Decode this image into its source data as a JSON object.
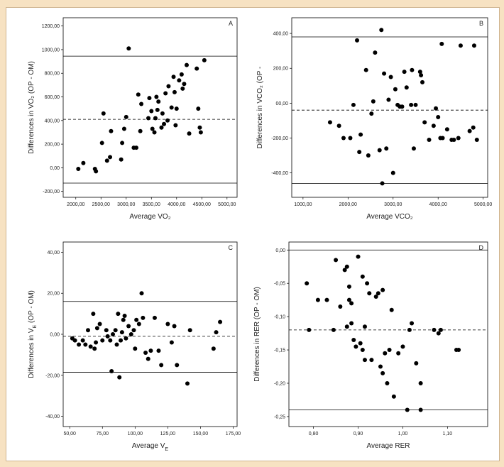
{
  "colors": {
    "background": "#f7e2c2",
    "frame": "#ffffff",
    "points": "#000000"
  },
  "chart_data": [
    {
      "type": "scatter",
      "panel": "A",
      "ylabel": "Differences in VO₂ (OP - OM)",
      "xlabel": "Average VO₂",
      "xlim": [
        1750,
        5200
      ],
      "ylim": [
        -250,
        1270
      ],
      "xticks": [
        {
          "v": 2000,
          "label": "2000,00"
        },
        {
          "v": 2500,
          "label": "2500,00"
        },
        {
          "v": 3000,
          "label": "3000,00"
        },
        {
          "v": 3500,
          "label": "3500,00"
        },
        {
          "v": 4000,
          "label": "4000,00"
        },
        {
          "v": 4500,
          "label": "4500,00"
        },
        {
          "v": 5000,
          "label": "5000,00"
        }
      ],
      "yticks": [
        {
          "v": -200,
          "label": "-200,00"
        },
        {
          "v": 0,
          "label": "0,00"
        },
        {
          "v": 200,
          "label": "200,00"
        },
        {
          "v": 400,
          "label": "400,00"
        },
        {
          "v": 600,
          "label": "600,00"
        },
        {
          "v": 800,
          "label": "800,00"
        },
        {
          "v": 1000,
          "label": "1000,00"
        },
        {
          "v": 1200,
          "label": "1200,00"
        }
      ],
      "upper_limit": 945,
      "mean": 410,
      "lower_limit": -130,
      "points": [
        [
          2050,
          -10
        ],
        [
          2150,
          40
        ],
        [
          2380,
          -10
        ],
        [
          2400,
          -30
        ],
        [
          2520,
          210
        ],
        [
          2550,
          460
        ],
        [
          2620,
          60
        ],
        [
          2680,
          90
        ],
        [
          2700,
          310
        ],
        [
          2900,
          70
        ],
        [
          2920,
          210
        ],
        [
          2960,
          330
        ],
        [
          3000,
          430
        ],
        [
          3050,
          1010
        ],
        [
          3150,
          170
        ],
        [
          3200,
          170
        ],
        [
          3240,
          620
        ],
        [
          3280,
          310
        ],
        [
          3300,
          540
        ],
        [
          3440,
          420
        ],
        [
          3460,
          590
        ],
        [
          3500,
          480
        ],
        [
          3520,
          330
        ],
        [
          3560,
          300
        ],
        [
          3580,
          420
        ],
        [
          3600,
          600
        ],
        [
          3620,
          490
        ],
        [
          3640,
          560
        ],
        [
          3700,
          340
        ],
        [
          3720,
          460
        ],
        [
          3750,
          370
        ],
        [
          3780,
          630
        ],
        [
          3820,
          400
        ],
        [
          3840,
          690
        ],
        [
          3900,
          510
        ],
        [
          3940,
          770
        ],
        [
          3960,
          640
        ],
        [
          3980,
          360
        ],
        [
          4000,
          500
        ],
        [
          4050,
          740
        ],
        [
          4100,
          790
        ],
        [
          4120,
          670
        ],
        [
          4150,
          710
        ],
        [
          4200,
          870
        ],
        [
          4250,
          290
        ],
        [
          4400,
          840
        ],
        [
          4430,
          500
        ],
        [
          4460,
          340
        ],
        [
          4480,
          300
        ],
        [
          4550,
          910
        ]
      ]
    },
    {
      "type": "scatter",
      "panel": "B",
      "ylabel": "Differences in VCO₂ (OP -",
      "xlabel": "Average VCO₂",
      "xlim": [
        750,
        5100
      ],
      "ylim": [
        -540,
        490
      ],
      "xticks": [
        {
          "v": 1000,
          "label": "1000,00"
        },
        {
          "v": 2000,
          "label": "2000,00"
        },
        {
          "v": 3000,
          "label": "3000,00"
        },
        {
          "v": 4000,
          "label": "4000,00"
        },
        {
          "v": 5000,
          "label": "5000,00"
        }
      ],
      "yticks": [
        {
          "v": -400,
          "label": "-400,00"
        },
        {
          "v": -200,
          "label": "-200,00"
        },
        {
          "v": 0,
          "label": "00,00"
        },
        {
          "v": 200,
          "label": "200,00"
        },
        {
          "v": 400,
          "label": "400,00"
        }
      ],
      "upper_limit": 380,
      "mean": -40,
      "lower_limit": -460,
      "points": [
        [
          1600,
          -110
        ],
        [
          1800,
          -130
        ],
        [
          1900,
          -200
        ],
        [
          2050,
          -200
        ],
        [
          2120,
          -10
        ],
        [
          2200,
          360
        ],
        [
          2250,
          -280
        ],
        [
          2280,
          -180
        ],
        [
          2400,
          190
        ],
        [
          2450,
          -300
        ],
        [
          2520,
          -60
        ],
        [
          2560,
          10
        ],
        [
          2600,
          290
        ],
        [
          2700,
          -270
        ],
        [
          2740,
          420
        ],
        [
          2760,
          -460
        ],
        [
          2800,
          170
        ],
        [
          2850,
          -260
        ],
        [
          2900,
          20
        ],
        [
          2950,
          150
        ],
        [
          3000,
          -400
        ],
        [
          3050,
          80
        ],
        [
          3100,
          -10
        ],
        [
          3150,
          -20
        ],
        [
          3200,
          -20
        ],
        [
          3250,
          180
        ],
        [
          3300,
          90
        ],
        [
          3400,
          -10
        ],
        [
          3420,
          190
        ],
        [
          3460,
          -260
        ],
        [
          3500,
          -10
        ],
        [
          3600,
          180
        ],
        [
          3620,
          160
        ],
        [
          3650,
          120
        ],
        [
          3700,
          -110
        ],
        [
          3800,
          -210
        ],
        [
          3900,
          -130
        ],
        [
          3950,
          -30
        ],
        [
          4000,
          -80
        ],
        [
          4050,
          -200
        ],
        [
          4080,
          340
        ],
        [
          4100,
          -200
        ],
        [
          4200,
          -150
        ],
        [
          4300,
          -210
        ],
        [
          4350,
          -210
        ],
        [
          4450,
          -200
        ],
        [
          4500,
          330
        ],
        [
          4700,
          -160
        ],
        [
          4780,
          -140
        ],
        [
          4800,
          330
        ],
        [
          4860,
          -210
        ]
      ]
    },
    {
      "type": "scatter",
      "panel": "C",
      "ylabel": "Differences in V_E (OP - OM)",
      "xlabel": "Average V_E",
      "xlim": [
        45,
        178
      ],
      "ylim": [
        -45,
        45
      ],
      "xticks": [
        {
          "v": 50,
          "label": "50,00"
        },
        {
          "v": 75,
          "label": "75,00"
        },
        {
          "v": 100,
          "label": "100,00"
        },
        {
          "v": 125,
          "label": "125,00"
        },
        {
          "v": 150,
          "label": "150,00"
        },
        {
          "v": 175,
          "label": "175,00"
        }
      ],
      "yticks": [
        {
          "v": -40,
          "label": "-40,00"
        },
        {
          "v": -20,
          "label": "-20,00"
        },
        {
          "v": 0,
          "label": "0,00"
        },
        {
          "v": 20,
          "label": "20,00"
        },
        {
          "v": 40,
          "label": "40,00"
        }
      ],
      "upper_limit": 16,
      "mean": -1,
      "lower_limit": -18.5,
      "points": [
        [
          52,
          -2
        ],
        [
          54,
          -3
        ],
        [
          57,
          -5
        ],
        [
          60,
          -3
        ],
        [
          62,
          -5
        ],
        [
          64,
          2
        ],
        [
          66,
          -6
        ],
        [
          68,
          10
        ],
        [
          69,
          -7
        ],
        [
          70,
          -4
        ],
        [
          71,
          3
        ],
        [
          73,
          5
        ],
        [
          75,
          -3
        ],
        [
          78,
          2
        ],
        [
          79,
          -1
        ],
        [
          81,
          -3
        ],
        [
          82,
          -18
        ],
        [
          83,
          0
        ],
        [
          85,
          2
        ],
        [
          86,
          -5
        ],
        [
          87,
          10
        ],
        [
          88,
          -21
        ],
        [
          89,
          -3
        ],
        [
          90,
          1
        ],
        [
          91,
          7
        ],
        [
          92,
          9
        ],
        [
          93,
          -2
        ],
        [
          95,
          4
        ],
        [
          97,
          0
        ],
        [
          99,
          2
        ],
        [
          100,
          -7
        ],
        [
          101,
          7
        ],
        [
          103,
          5
        ],
        [
          105,
          20
        ],
        [
          106,
          8
        ],
        [
          108,
          -9
        ],
        [
          110,
          -12
        ],
        [
          112,
          -8
        ],
        [
          115,
          8
        ],
        [
          118,
          -8
        ],
        [
          120,
          -15
        ],
        [
          125,
          5
        ],
        [
          128,
          -4
        ],
        [
          130,
          4
        ],
        [
          132,
          -15
        ],
        [
          140,
          -24
        ],
        [
          142,
          2
        ],
        [
          160,
          -7
        ],
        [
          162,
          1
        ],
        [
          165,
          6
        ]
      ]
    },
    {
      "type": "scatter",
      "panel": "D",
      "ylabel": "Differences in RER (OP - OM)",
      "xlabel": "Average RER",
      "xlim": [
        0.745,
        1.19
      ],
      "ylim": [
        -0.265,
        0.012
      ],
      "xticks": [
        {
          "v": 0.8,
          "label": "0,80"
        },
        {
          "v": 0.9,
          "label": "0,90"
        },
        {
          "v": 1.0,
          "label": "1,00"
        },
        {
          "v": 1.1,
          "label": "1,10"
        }
      ],
      "yticks": [
        {
          "v": 0,
          "label": "0,00"
        },
        {
          "v": -0.05,
          "label": "-0,05"
        },
        {
          "v": -0.1,
          "label": "-0,10"
        },
        {
          "v": -0.15,
          "label": "-0,15"
        },
        {
          "v": -0.2,
          "label": "-0,20"
        },
        {
          "v": -0.25,
          "label": "-0,25"
        }
      ],
      "upper_limit": 0.0,
      "mean": -0.12,
      "lower_limit": -0.24,
      "points": [
        [
          0.785,
          -0.05
        ],
        [
          0.79,
          -0.12
        ],
        [
          0.81,
          -0.075
        ],
        [
          0.83,
          -0.075
        ],
        [
          0.845,
          -0.12
        ],
        [
          0.85,
          -0.015
        ],
        [
          0.86,
          -0.085
        ],
        [
          0.87,
          -0.03
        ],
        [
          0.875,
          -0.025
        ],
        [
          0.875,
          -0.115
        ],
        [
          0.88,
          -0.055
        ],
        [
          0.88,
          -0.075
        ],
        [
          0.885,
          -0.08
        ],
        [
          0.885,
          -0.11
        ],
        [
          0.89,
          -0.135
        ],
        [
          0.895,
          -0.145
        ],
        [
          0.9,
          -0.01
        ],
        [
          0.905,
          -0.14
        ],
        [
          0.91,
          -0.04
        ],
        [
          0.91,
          -0.15
        ],
        [
          0.915,
          -0.115
        ],
        [
          0.915,
          -0.165
        ],
        [
          0.92,
          -0.05
        ],
        [
          0.925,
          -0.065
        ],
        [
          0.93,
          -0.165
        ],
        [
          0.94,
          -0.07
        ],
        [
          0.945,
          -0.065
        ],
        [
          0.95,
          -0.175
        ],
        [
          0.955,
          -0.06
        ],
        [
          0.955,
          -0.185
        ],
        [
          0.96,
          -0.155
        ],
        [
          0.965,
          -0.2
        ],
        [
          0.97,
          -0.15
        ],
        [
          0.975,
          -0.09
        ],
        [
          0.98,
          -0.22
        ],
        [
          0.99,
          -0.155
        ],
        [
          1.0,
          -0.145
        ],
        [
          1.01,
          -0.24
        ],
        [
          1.015,
          -0.12
        ],
        [
          1.02,
          -0.11
        ],
        [
          1.03,
          -0.17
        ],
        [
          1.04,
          -0.2
        ],
        [
          1.04,
          -0.24
        ],
        [
          1.07,
          -0.12
        ],
        [
          1.08,
          -0.125
        ],
        [
          1.085,
          -0.12
        ],
        [
          1.12,
          -0.15
        ],
        [
          1.125,
          -0.15
        ]
      ]
    }
  ]
}
